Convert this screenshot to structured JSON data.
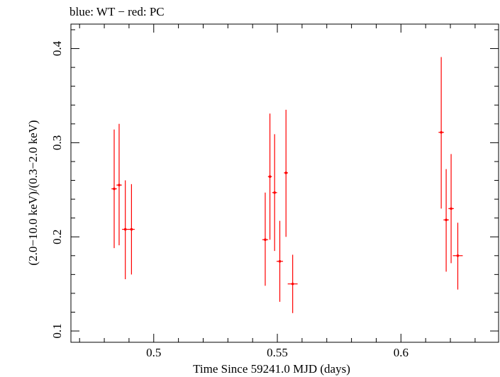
{
  "chart_data": {
    "type": "scatter",
    "title": "blue: WT − red: PC",
    "xlabel": "Time Since 59241.0 MJD (days)",
    "ylabel": "(2.0−10.0 keV)/(0.3−2.0 keV)",
    "xlim": [
      0.4665,
      0.6395
    ],
    "ylim": [
      0.088,
      0.426
    ],
    "x_ticks": [
      "0.5",
      "0.55",
      "0.6"
    ],
    "y_ticks": [
      "0.1",
      "0.2",
      "0.3",
      "0.4"
    ],
    "grid": false,
    "series": [
      {
        "name": "PC",
        "color": "#ff0000",
        "points": [
          {
            "x": 0.484,
            "xerr": 0.0011,
            "y": 0.251,
            "ylo": 0.188,
            "yhi": 0.314
          },
          {
            "x": 0.486,
            "xerr": 0.0011,
            "y": 0.255,
            "ylo": 0.191,
            "yhi": 0.32
          },
          {
            "x": 0.4885,
            "xerr": 0.0013,
            "y": 0.208,
            "ylo": 0.155,
            "yhi": 0.26
          },
          {
            "x": 0.491,
            "xerr": 0.0013,
            "y": 0.208,
            "ylo": 0.16,
            "yhi": 0.256
          },
          {
            "x": 0.5451,
            "xerr": 0.0012,
            "y": 0.197,
            "ylo": 0.148,
            "yhi": 0.247
          },
          {
            "x": 0.547,
            "xerr": 0.0008,
            "y": 0.264,
            "ylo": 0.197,
            "yhi": 0.331
          },
          {
            "x": 0.5489,
            "xerr": 0.001,
            "y": 0.247,
            "ylo": 0.185,
            "yhi": 0.309
          },
          {
            "x": 0.551,
            "xerr": 0.0013,
            "y": 0.174,
            "ylo": 0.131,
            "yhi": 0.217
          },
          {
            "x": 0.5535,
            "xerr": 0.0008,
            "y": 0.268,
            "ylo": 0.2,
            "yhi": 0.335
          },
          {
            "x": 0.5562,
            "xerr": 0.002,
            "y": 0.15,
            "ylo": 0.119,
            "yhi": 0.181
          },
          {
            "x": 0.6163,
            "xerr": 0.0011,
            "y": 0.311,
            "ylo": 0.23,
            "yhi": 0.391
          },
          {
            "x": 0.6183,
            "xerr": 0.0011,
            "y": 0.218,
            "ylo": 0.163,
            "yhi": 0.272
          },
          {
            "x": 0.6203,
            "xerr": 0.0011,
            "y": 0.23,
            "ylo": 0.172,
            "yhi": 0.288
          },
          {
            "x": 0.623,
            "xerr": 0.002,
            "y": 0.18,
            "ylo": 0.144,
            "yhi": 0.215
          }
        ]
      }
    ]
  }
}
